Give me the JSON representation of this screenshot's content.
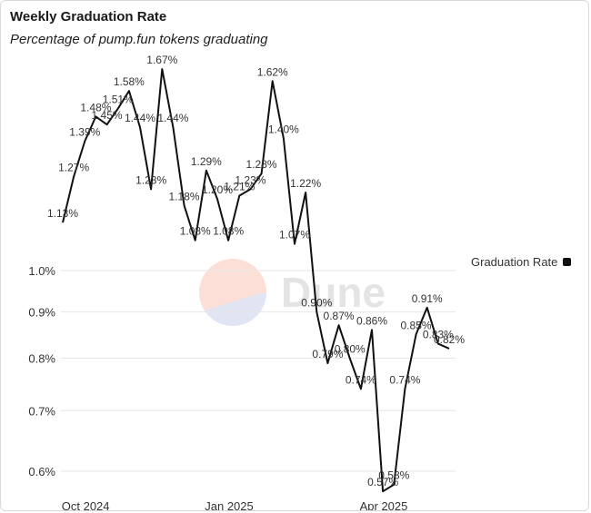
{
  "chart_data": {
    "type": "line",
    "title": "Weekly Graduation Rate",
    "subtitle": "Percentage of pump.fun tokens graduating",
    "series": [
      {
        "name": "Graduation Rate",
        "color": "#111111",
        "values": [
          1.13,
          1.27,
          1.39,
          1.48,
          1.45,
          1.51,
          1.58,
          1.44,
          1.23,
          1.67,
          1.44,
          1.18,
          1.08,
          1.29,
          1.2,
          1.08,
          1.21,
          1.23,
          1.28,
          1.62,
          1.4,
          1.07,
          1.22,
          0.9,
          0.79,
          0.87,
          0.8,
          0.74,
          0.86,
          0.57,
          0.58,
          0.74,
          0.85,
          0.91,
          0.83,
          0.82
        ],
        "labels": [
          "1.13%",
          "1.27%",
          "1.39%",
          "1.48%",
          "1.45%",
          "1.51%",
          "1.58%",
          "1.44%",
          "1.23%",
          "1.67%",
          "1.44%",
          "1.18%",
          "1.08%",
          "1.29%",
          "1.20%",
          "1.08%",
          "1.21%",
          "1.23%",
          "1.28%",
          "1.62%",
          "1.40%",
          "1.07%",
          "1.22%",
          "0.90%",
          "0.79%",
          "0.87%",
          "0.80%",
          "0.74%",
          "0.86%",
          "0.57%",
          "0.58%",
          "0.74%",
          "0.85%",
          "0.91%",
          "0.83%",
          "0.82%"
        ]
      }
    ],
    "y_axis": {
      "scale": "log",
      "ticks": [
        0.6,
        0.7,
        0.8,
        0.9,
        1.0
      ],
      "tick_labels": [
        "0.6%",
        "0.7%",
        "0.8%",
        "0.9%",
        "1.0%"
      ],
      "grid": true
    },
    "x_axis": {
      "tick_labels": [
        "Oct 2024",
        "Jan 2025",
        "Apr 2025"
      ],
      "tick_indices": [
        1,
        14,
        28
      ]
    },
    "legend": {
      "position": "right",
      "label": "Graduation Rate"
    },
    "watermark": "Dune"
  }
}
